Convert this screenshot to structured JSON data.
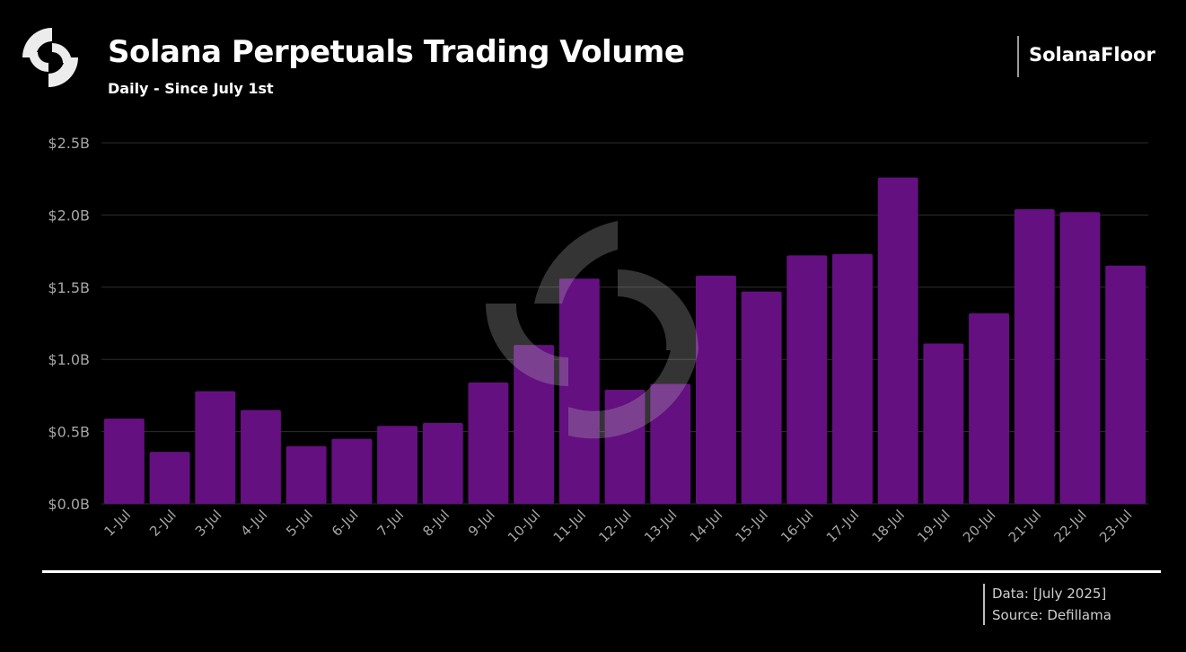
{
  "header": {
    "title": "Solana Perpetuals Trading Volume",
    "subtitle": "Daily - Since July 1st",
    "brand": "SolanaFloor"
  },
  "footer": {
    "data_line": "Data: [July 2025]",
    "source_line": "Source: Defillama"
  },
  "colors": {
    "background": "#000000",
    "bar": "#641080",
    "grid": "#2e2e2e",
    "axis_text": "#a6a6a6"
  },
  "chart_data": {
    "type": "bar",
    "title": "Solana Perpetuals Trading Volume",
    "subtitle": "Daily - Since July 1st",
    "xlabel": "",
    "ylabel": "",
    "categories": [
      "1-Jul",
      "2-Jul",
      "3-Jul",
      "4-Jul",
      "5-Jul",
      "6-Jul",
      "7-Jul",
      "8-Jul",
      "9-Jul",
      "10-Jul",
      "11-Jul",
      "12-Jul",
      "13-Jul",
      "14-Jul",
      "15-Jul",
      "16-Jul",
      "17-Jul",
      "18-Jul",
      "19-Jul",
      "20-Jul",
      "21-Jul",
      "22-Jul",
      "23-Jul"
    ],
    "values": [
      0.59,
      0.36,
      0.78,
      0.65,
      0.4,
      0.45,
      0.54,
      0.56,
      0.84,
      1.1,
      1.56,
      0.79,
      0.83,
      1.58,
      1.47,
      1.72,
      1.73,
      2.26,
      1.11,
      1.32,
      2.04,
      2.02,
      1.65
    ],
    "unit": "B USD",
    "ylim": [
      0,
      2.5
    ],
    "yticks": [
      0.0,
      0.5,
      1.0,
      1.5,
      2.0,
      2.5
    ],
    "ytick_labels": [
      "$0.0B",
      "$0.5B",
      "$1.0B",
      "$1.5B",
      "$2.0B",
      "$2.5B"
    ],
    "grid": "horizontal",
    "legend": "none"
  }
}
